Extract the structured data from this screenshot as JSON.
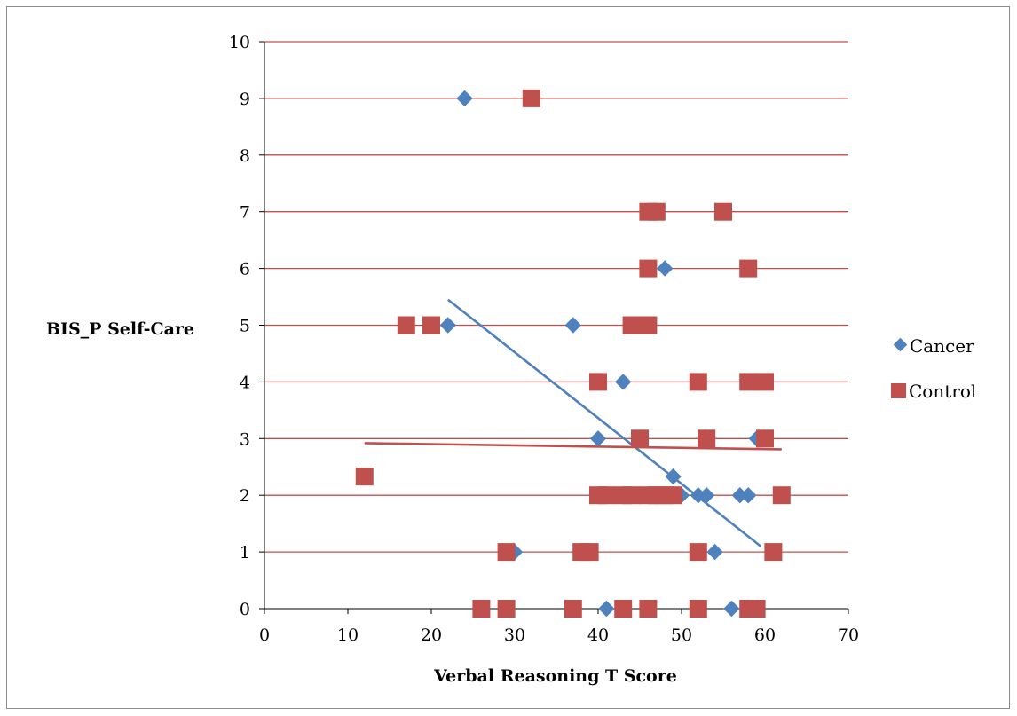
{
  "chart_data": {
    "type": "scatter",
    "xlabel": "Verbal Reasoning T Score",
    "ylabel": "BIS_P Self-Care",
    "xlim": [
      0,
      70
    ],
    "ylim": [
      0,
      10
    ],
    "xticks": [
      0,
      10,
      20,
      30,
      40,
      50,
      60,
      70
    ],
    "yticks": [
      0,
      1,
      2,
      3,
      4,
      5,
      6,
      7,
      8,
      9,
      10
    ],
    "grid": "horizontal",
    "legend_position": "right",
    "series": [
      {
        "name": "Cancer",
        "marker": "diamond",
        "color": "#4f81bd",
        "points": [
          [
            24,
            9
          ],
          [
            48,
            6
          ],
          [
            22,
            5
          ],
          [
            37,
            5
          ],
          [
            43,
            4
          ],
          [
            40,
            3
          ],
          [
            59,
            3
          ],
          [
            49,
            2.33
          ],
          [
            50,
            2
          ],
          [
            52,
            2
          ],
          [
            53,
            2
          ],
          [
            57,
            2
          ],
          [
            58,
            2
          ],
          [
            30,
            1
          ],
          [
            54,
            1
          ],
          [
            41,
            0
          ],
          [
            56,
            0
          ],
          [
            58,
            0
          ]
        ],
        "trendline": [
          [
            22,
            5.45
          ],
          [
            59.5,
            1.1
          ]
        ]
      },
      {
        "name": "Control",
        "marker": "square",
        "color": "#c0504d",
        "points": [
          [
            32,
            9
          ],
          [
            46,
            7
          ],
          [
            47,
            7
          ],
          [
            55,
            7
          ],
          [
            46,
            6
          ],
          [
            58,
            6
          ],
          [
            17,
            5
          ],
          [
            20,
            5
          ],
          [
            44,
            5
          ],
          [
            46,
            5
          ],
          [
            40,
            4
          ],
          [
            52,
            4
          ],
          [
            58,
            4
          ],
          [
            60,
            4
          ],
          [
            45,
            3
          ],
          [
            53,
            3
          ],
          [
            60,
            3
          ],
          [
            12,
            2.33
          ],
          [
            40,
            2
          ],
          [
            41,
            2
          ],
          [
            43,
            2
          ],
          [
            44,
            2
          ],
          [
            46,
            2
          ],
          [
            47,
            2
          ],
          [
            48,
            2
          ],
          [
            49,
            2
          ],
          [
            62,
            2
          ],
          [
            29,
            1
          ],
          [
            38,
            1
          ],
          [
            39,
            1
          ],
          [
            52,
            1
          ],
          [
            61,
            1
          ],
          [
            26,
            0
          ],
          [
            29,
            0
          ],
          [
            37,
            0
          ],
          [
            43,
            0
          ],
          [
            46,
            0
          ],
          [
            52,
            0
          ],
          [
            58,
            0
          ],
          [
            59,
            0
          ]
        ],
        "trendline": [
          [
            12,
            2.92
          ],
          [
            62,
            2.81
          ]
        ]
      }
    ]
  }
}
